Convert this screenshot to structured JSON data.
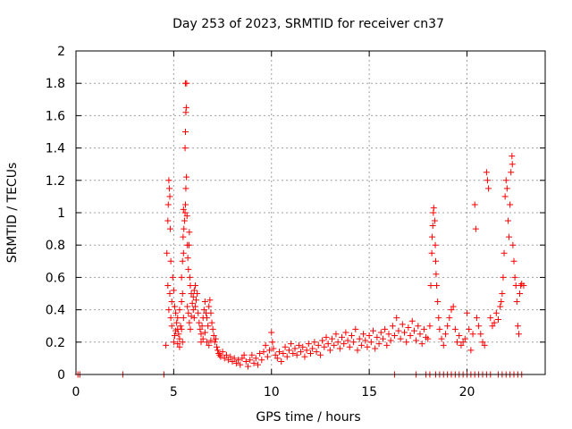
{
  "chart_data": {
    "type": "scatter",
    "title": "Day 253 of 2023, SRMTID for receiver cn37",
    "xlabel": "GPS time / hours",
    "ylabel": "SRMTID / TECUs",
    "xlim": [
      0,
      24
    ],
    "ylim": [
      0,
      2
    ],
    "xticks": [
      0,
      5,
      10,
      15,
      20
    ],
    "xtick_labels": [
      "0",
      "5",
      "10",
      "15",
      "20"
    ],
    "yticks": [
      0,
      0.2,
      0.4,
      0.6,
      0.8,
      1,
      1.2,
      1.4,
      1.6,
      1.8,
      2
    ],
    "ytick_labels": [
      "0",
      "0.2",
      "0.4",
      "0.6",
      "0.8",
      "1",
      "1.2",
      "1.4",
      "1.6",
      "1.8",
      "2"
    ],
    "grid": true,
    "marker": "+",
    "color": "#ff0000",
    "series": [
      {
        "name": "SRMTID",
        "points": [
          [
            0.1,
            0.0
          ],
          [
            0.2,
            0.0
          ],
          [
            2.4,
            0.0
          ],
          [
            4.5,
            0.0
          ],
          [
            4.6,
            0.18
          ],
          [
            4.65,
            0.75
          ],
          [
            4.7,
            0.95
          ],
          [
            4.72,
            1.05
          ],
          [
            4.75,
            1.2
          ],
          [
            4.78,
            1.15
          ],
          [
            4.8,
            1.1
          ],
          [
            4.82,
            0.9
          ],
          [
            4.85,
            0.7
          ],
          [
            4.7,
            0.55
          ],
          [
            4.8,
            0.5
          ],
          [
            4.9,
            0.45
          ],
          [
            4.95,
            0.6
          ],
          [
            4.75,
            0.4
          ],
          [
            4.85,
            0.35
          ],
          [
            4.9,
            0.3
          ],
          [
            5.0,
            0.52
          ],
          [
            5.05,
            0.42
          ],
          [
            5.1,
            0.38
          ],
          [
            5.15,
            0.32
          ],
          [
            5.2,
            0.28
          ],
          [
            5.25,
            0.25
          ],
          [
            5.3,
            0.22
          ],
          [
            5.35,
            0.3
          ],
          [
            5.1,
            0.27
          ],
          [
            5.2,
            0.35
          ],
          [
            5.3,
            0.4
          ],
          [
            5.4,
            0.45
          ],
          [
            5.45,
            0.5
          ],
          [
            5.5,
            0.35
          ],
          [
            5.4,
            0.28
          ],
          [
            5.45,
            0.2
          ],
          [
            5.0,
            0.2
          ],
          [
            5.05,
            0.24
          ],
          [
            5.2,
            0.19
          ],
          [
            5.3,
            0.17
          ],
          [
            5.4,
            0.6
          ],
          [
            5.45,
            0.7
          ],
          [
            5.5,
            0.75
          ],
          [
            5.48,
            0.85
          ],
          [
            5.52,
            0.9
          ],
          [
            5.55,
            0.95
          ],
          [
            5.58,
            1.0
          ],
          [
            5.6,
            1.05
          ],
          [
            5.5,
            1.02
          ],
          [
            5.62,
            1.15
          ],
          [
            5.65,
            1.22
          ],
          [
            5.58,
            1.4
          ],
          [
            5.6,
            1.5
          ],
          [
            5.62,
            1.62
          ],
          [
            5.64,
            1.65
          ],
          [
            5.6,
            1.8
          ],
          [
            5.66,
            1.8
          ],
          [
            5.68,
            0.98
          ],
          [
            5.7,
            0.8
          ],
          [
            5.72,
            0.72
          ],
          [
            5.75,
            0.65
          ],
          [
            5.78,
            0.8
          ],
          [
            5.8,
            0.88
          ],
          [
            5.82,
            0.6
          ],
          [
            5.85,
            0.55
          ],
          [
            5.9,
            0.5
          ],
          [
            5.7,
            0.42
          ],
          [
            5.75,
            0.38
          ],
          [
            5.8,
            0.32
          ],
          [
            5.85,
            0.28
          ],
          [
            5.9,
            0.36
          ],
          [
            5.95,
            0.44
          ],
          [
            6.0,
            0.48
          ],
          [
            6.05,
            0.52
          ],
          [
            6.1,
            0.55
          ],
          [
            6.0,
            0.4
          ],
          [
            6.05,
            0.35
          ],
          [
            6.1,
            0.42
          ],
          [
            6.15,
            0.46
          ],
          [
            6.2,
            0.5
          ],
          [
            6.25,
            0.38
          ],
          [
            6.3,
            0.32
          ],
          [
            6.35,
            0.28
          ],
          [
            6.4,
            0.25
          ],
          [
            6.45,
            0.3
          ],
          [
            6.5,
            0.35
          ],
          [
            6.55,
            0.4
          ],
          [
            6.6,
            0.45
          ],
          [
            6.65,
            0.38
          ],
          [
            6.7,
            0.35
          ],
          [
            6.75,
            0.3
          ],
          [
            6.8,
            0.42
          ],
          [
            6.85,
            0.46
          ],
          [
            6.9,
            0.38
          ],
          [
            6.95,
            0.32
          ],
          [
            7.0,
            0.28
          ],
          [
            7.05,
            0.24
          ],
          [
            7.1,
            0.2
          ],
          [
            7.15,
            0.22
          ],
          [
            7.2,
            0.17
          ],
          [
            7.25,
            0.15
          ],
          [
            7.3,
            0.13
          ],
          [
            6.4,
            0.2
          ],
          [
            6.5,
            0.22
          ],
          [
            6.6,
            0.26
          ],
          [
            6.7,
            0.2
          ],
          [
            6.8,
            0.18
          ],
          [
            6.9,
            0.21
          ],
          [
            7.35,
            0.12
          ],
          [
            7.4,
            0.11
          ],
          [
            7.5,
            0.14
          ],
          [
            7.6,
            0.1
          ],
          [
            7.7,
            0.12
          ],
          [
            7.8,
            0.09
          ],
          [
            7.9,
            0.11
          ],
          [
            8.0,
            0.08
          ],
          [
            8.1,
            0.1
          ],
          [
            8.2,
            0.07
          ],
          [
            8.3,
            0.09
          ],
          [
            8.4,
            0.06
          ],
          [
            8.5,
            0.1
          ],
          [
            8.6,
            0.12
          ],
          [
            8.7,
            0.08
          ],
          [
            8.8,
            0.05
          ],
          [
            8.9,
            0.09
          ],
          [
            9.0,
            0.12
          ],
          [
            9.1,
            0.07
          ],
          [
            9.2,
            0.1
          ],
          [
            9.3,
            0.06
          ],
          [
            9.4,
            0.13
          ],
          [
            9.5,
            0.09
          ],
          [
            9.6,
            0.14
          ],
          [
            9.7,
            0.18
          ],
          [
            9.8,
            0.11
          ],
          [
            9.9,
            0.15
          ],
          [
            10.0,
            0.26
          ],
          [
            10.05,
            0.2
          ],
          [
            10.1,
            0.16
          ],
          [
            10.2,
            0.12
          ],
          [
            10.3,
            0.1
          ],
          [
            10.4,
            0.14
          ],
          [
            10.5,
            0.08
          ],
          [
            10.6,
            0.13
          ],
          [
            10.7,
            0.17
          ],
          [
            10.8,
            0.11
          ],
          [
            10.9,
            0.15
          ],
          [
            11.0,
            0.19
          ],
          [
            11.1,
            0.13
          ],
          [
            11.2,
            0.16
          ],
          [
            11.3,
            0.12
          ],
          [
            11.4,
            0.18
          ],
          [
            11.5,
            0.14
          ],
          [
            11.6,
            0.17
          ],
          [
            11.7,
            0.11
          ],
          [
            11.8,
            0.15
          ],
          [
            11.9,
            0.19
          ],
          [
            12.0,
            0.13
          ],
          [
            12.1,
            0.16
          ],
          [
            12.2,
            0.2
          ],
          [
            12.3,
            0.14
          ],
          [
            12.4,
            0.18
          ],
          [
            12.5,
            0.12
          ],
          [
            12.6,
            0.21
          ],
          [
            12.7,
            0.17
          ],
          [
            12.8,
            0.23
          ],
          [
            12.9,
            0.19
          ],
          [
            13.0,
            0.15
          ],
          [
            13.1,
            0.22
          ],
          [
            13.2,
            0.18
          ],
          [
            13.3,
            0.25
          ],
          [
            13.4,
            0.2
          ],
          [
            13.5,
            0.16
          ],
          [
            13.6,
            0.23
          ],
          [
            13.7,
            0.19
          ],
          [
            13.8,
            0.26
          ],
          [
            13.9,
            0.21
          ],
          [
            14.0,
            0.17
          ],
          [
            14.1,
            0.24
          ],
          [
            14.2,
            0.2
          ],
          [
            14.3,
            0.28
          ],
          [
            14.4,
            0.15
          ],
          [
            14.5,
            0.22
          ],
          [
            14.6,
            0.18
          ],
          [
            14.7,
            0.25
          ],
          [
            14.8,
            0.21
          ],
          [
            14.9,
            0.17
          ],
          [
            15.0,
            0.24
          ],
          [
            15.1,
            0.2
          ],
          [
            15.2,
            0.27
          ],
          [
            15.3,
            0.16
          ],
          [
            15.4,
            0.23
          ],
          [
            15.5,
            0.19
          ],
          [
            15.6,
            0.26
          ],
          [
            15.7,
            0.22
          ],
          [
            15.8,
            0.28
          ],
          [
            15.9,
            0.18
          ],
          [
            16.0,
            0.25
          ],
          [
            16.1,
            0.21
          ],
          [
            16.2,
            0.3
          ],
          [
            16.3,
            0.24
          ],
          [
            16.4,
            0.35
          ],
          [
            16.5,
            0.27
          ],
          [
            16.6,
            0.22
          ],
          [
            16.7,
            0.31
          ],
          [
            16.8,
            0.26
          ],
          [
            16.9,
            0.2
          ],
          [
            17.0,
            0.29
          ],
          [
            17.1,
            0.24
          ],
          [
            17.2,
            0.33
          ],
          [
            17.3,
            0.27
          ],
          [
            17.4,
            0.21
          ],
          [
            17.5,
            0.3
          ],
          [
            17.6,
            0.25
          ],
          [
            17.7,
            0.19
          ],
          [
            17.8,
            0.28
          ],
          [
            17.9,
            0.23
          ],
          [
            18.0,
            0.22
          ],
          [
            18.1,
            0.3
          ],
          [
            18.15,
            0.55
          ],
          [
            18.2,
            0.75
          ],
          [
            18.22,
            0.85
          ],
          [
            18.25,
            0.92
          ],
          [
            18.28,
            1.0
          ],
          [
            18.3,
            1.03
          ],
          [
            18.35,
            0.95
          ],
          [
            18.38,
            0.8
          ],
          [
            18.4,
            0.7
          ],
          [
            18.42,
            0.62
          ],
          [
            18.45,
            0.55
          ],
          [
            18.5,
            0.45
          ],
          [
            18.55,
            0.35
          ],
          [
            18.6,
            0.28
          ],
          [
            18.7,
            0.22
          ],
          [
            18.8,
            0.18
          ],
          [
            18.9,
            0.25
          ],
          [
            19.0,
            0.3
          ],
          [
            19.1,
            0.35
          ],
          [
            19.2,
            0.4
          ],
          [
            19.3,
            0.42
          ],
          [
            19.4,
            0.28
          ],
          [
            19.5,
            0.2
          ],
          [
            19.6,
            0.24
          ],
          [
            19.7,
            0.18
          ],
          [
            19.8,
            0.2
          ],
          [
            19.9,
            0.22
          ],
          [
            20.0,
            0.38
          ],
          [
            20.1,
            0.28
          ],
          [
            20.2,
            0.15
          ],
          [
            20.3,
            0.25
          ],
          [
            20.4,
            1.05
          ],
          [
            20.45,
            0.9
          ],
          [
            20.5,
            0.35
          ],
          [
            20.6,
            0.3
          ],
          [
            20.7,
            0.25
          ],
          [
            20.8,
            0.2
          ],
          [
            20.9,
            0.18
          ],
          [
            21.0,
            1.25
          ],
          [
            21.05,
            1.2
          ],
          [
            21.1,
            1.15
          ],
          [
            21.2,
            0.35
          ],
          [
            21.3,
            0.3
          ],
          [
            21.4,
            0.32
          ],
          [
            21.5,
            0.38
          ],
          [
            21.6,
            0.34
          ],
          [
            21.7,
            0.42
          ],
          [
            21.75,
            0.45
          ],
          [
            21.8,
            0.5
          ],
          [
            21.85,
            0.6
          ],
          [
            21.9,
            0.75
          ],
          [
            21.95,
            1.1
          ],
          [
            22.0,
            1.2
          ],
          [
            22.05,
            1.15
          ],
          [
            22.1,
            0.95
          ],
          [
            22.15,
            0.85
          ],
          [
            22.2,
            1.05
          ],
          [
            22.25,
            1.25
          ],
          [
            22.3,
            1.35
          ],
          [
            22.32,
            1.3
          ],
          [
            22.35,
            0.8
          ],
          [
            22.4,
            0.7
          ],
          [
            22.45,
            0.6
          ],
          [
            22.5,
            0.55
          ],
          [
            22.55,
            0.45
          ],
          [
            22.6,
            0.3
          ],
          [
            22.65,
            0.25
          ],
          [
            22.7,
            0.5
          ],
          [
            22.75,
            0.55
          ],
          [
            22.8,
            0.56
          ],
          [
            22.9,
            0.55
          ],
          [
            17.9,
            0.0
          ],
          [
            18.1,
            0.0
          ],
          [
            18.4,
            0.0
          ],
          [
            18.6,
            0.0
          ],
          [
            18.8,
            0.0
          ],
          [
            19.0,
            0.0
          ],
          [
            19.2,
            0.0
          ],
          [
            19.4,
            0.0
          ],
          [
            19.6,
            0.0
          ],
          [
            19.8,
            0.0
          ],
          [
            20.0,
            0.0
          ],
          [
            20.2,
            0.0
          ],
          [
            20.4,
            0.0
          ],
          [
            20.6,
            0.0
          ],
          [
            20.8,
            0.0
          ],
          [
            21.0,
            0.0
          ],
          [
            21.2,
            0.0
          ],
          [
            21.6,
            0.0
          ],
          [
            21.8,
            0.0
          ],
          [
            22.0,
            0.0
          ],
          [
            22.2,
            0.0
          ],
          [
            22.4,
            0.0
          ],
          [
            22.6,
            0.0
          ],
          [
            22.8,
            0.0
          ],
          [
            16.3,
            0.0
          ],
          [
            17.4,
            0.0
          ]
        ]
      }
    ]
  }
}
